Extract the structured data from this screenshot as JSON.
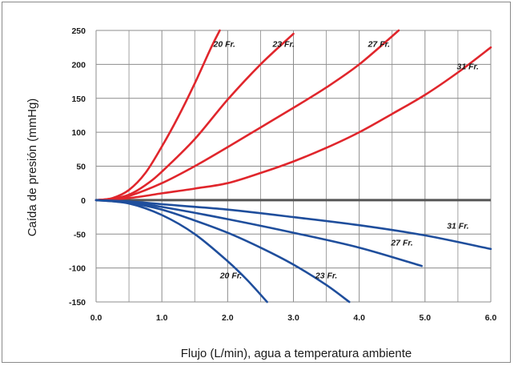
{
  "chart_data": {
    "type": "line",
    "title": "",
    "xlabel": "Flujo (L/min), agua a temperatura ambiente",
    "ylabel": "Caída de presión (mmHg)",
    "xlim": [
      0,
      6
    ],
    "ylim": [
      -150,
      250
    ],
    "xticks": [
      0,
      1,
      2,
      3,
      4,
      5,
      6
    ],
    "yticks": [
      -150,
      -100,
      -50,
      0,
      50,
      100,
      150,
      200,
      250
    ],
    "xtick_labels": [
      "0.0",
      "1.0",
      "2.0",
      "3.0",
      "4.0",
      "5.0",
      "6.0"
    ],
    "ytick_labels": [
      "-150",
      "-100",
      "-50",
      "0",
      "50",
      "100",
      "150",
      "200",
      "250"
    ],
    "grid": true,
    "legend": "none",
    "colors": {
      "positive": "#e0262c",
      "negative": "#1f4e9c",
      "zero_line": "#555555",
      "grid": "#8c8c8c"
    },
    "series": [
      {
        "name": "20 Fr.",
        "group": "positive",
        "label_at": [
          1.95,
          226
        ],
        "x": [
          0,
          0.25,
          0.5,
          0.75,
          1.0,
          1.25,
          1.5,
          1.75,
          1.88
        ],
        "y": [
          0,
          3,
          15,
          40,
          79,
          123,
          172,
          225,
          250
        ]
      },
      {
        "name": "23 Fr.",
        "group": "positive",
        "label_at": [
          2.85,
          226
        ],
        "x": [
          0,
          0.25,
          0.5,
          0.75,
          1.0,
          1.5,
          2.0,
          2.5,
          3.0
        ],
        "y": [
          0,
          2,
          8,
          22,
          42,
          90,
          148,
          200,
          245
        ]
      },
      {
        "name": "27 Fr.",
        "group": "positive",
        "label_at": [
          4.3,
          226
        ],
        "x": [
          0,
          0.25,
          0.5,
          1.0,
          1.5,
          2.0,
          2.5,
          3.0,
          3.5,
          4.0,
          4.6
        ],
        "y": [
          0,
          2,
          6,
          25,
          50,
          78,
          107,
          136,
          166,
          200,
          250
        ]
      },
      {
        "name": "31 Fr.",
        "group": "positive",
        "label_at": [
          5.65,
          193
        ],
        "x": [
          0,
          0.5,
          1.0,
          1.5,
          2.0,
          2.5,
          3.0,
          3.5,
          4.0,
          4.5,
          5.0,
          5.5,
          6.0
        ],
        "y": [
          0,
          3,
          10,
          17,
          25,
          40,
          57,
          77,
          100,
          127,
          155,
          188,
          225
        ]
      },
      {
        "name": "20 Fr.",
        "group": "negative",
        "label_at": [
          2.05,
          -115
        ],
        "x": [
          0,
          0.5,
          1.0,
          1.5,
          2.0,
          2.3,
          2.6
        ],
        "y": [
          0,
          -5,
          -22,
          -50,
          -90,
          -118,
          -150
        ]
      },
      {
        "name": "23 Fr.",
        "group": "negative",
        "label_at": [
          3.5,
          -115
        ],
        "x": [
          0,
          0.5,
          1.0,
          1.5,
          2.0,
          2.5,
          3.0,
          3.5,
          3.85
        ],
        "y": [
          0,
          -4,
          -14,
          -30,
          -48,
          -70,
          -95,
          -125,
          -150
        ]
      },
      {
        "name": "27 Fr.",
        "group": "negative",
        "label_at": [
          4.65,
          -67
        ],
        "x": [
          0,
          0.5,
          1.0,
          2.0,
          3.0,
          4.0,
          4.95
        ],
        "y": [
          0,
          -3,
          -10,
          -28,
          -48,
          -70,
          -97
        ]
      },
      {
        "name": "31 Fr.",
        "group": "negative",
        "label_at": [
          5.5,
          -42
        ],
        "x": [
          0,
          0.5,
          1.0,
          2.0,
          3.0,
          4.0,
          5.0,
          6.0
        ],
        "y": [
          0,
          -2,
          -6,
          -14,
          -25,
          -37,
          -52,
          -72
        ]
      }
    ]
  }
}
